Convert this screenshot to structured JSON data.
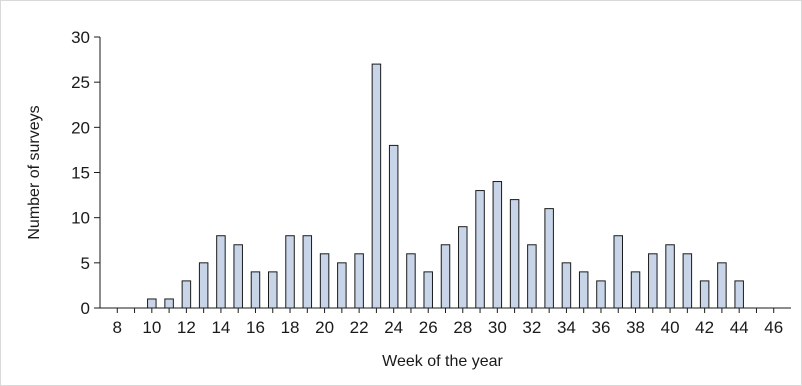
{
  "chart_data": {
    "type": "bar",
    "x": [
      10,
      11,
      12,
      13,
      14,
      15,
      16,
      17,
      18,
      19,
      20,
      21,
      22,
      23,
      24,
      25,
      26,
      27,
      28,
      29,
      30,
      31,
      32,
      33,
      34,
      35,
      36,
      37,
      38,
      39,
      40,
      41,
      42,
      43,
      44
    ],
    "values": [
      1,
      1,
      3,
      5,
      8,
      7,
      4,
      4,
      8,
      8,
      6,
      5,
      6,
      27,
      18,
      6,
      4,
      7,
      9,
      13,
      14,
      12,
      7,
      11,
      5,
      4,
      3,
      8,
      4,
      6,
      7,
      6,
      3,
      5,
      3
    ],
    "title": "",
    "xlabel": "Week of the year",
    "ylabel": "Number of surveys",
    "xlim": [
      7,
      47
    ],
    "ylim": [
      0,
      30
    ],
    "xticks": [
      8,
      10,
      12,
      14,
      16,
      18,
      20,
      22,
      24,
      26,
      28,
      30,
      32,
      34,
      36,
      38,
      40,
      42,
      44,
      46
    ],
    "yticks": [
      0,
      5,
      10,
      15,
      20,
      25,
      30
    ],
    "bar_color": "#c8d5e8",
    "bar_edge_color": "#1a1a1a",
    "grid": false,
    "legend": "none"
  }
}
